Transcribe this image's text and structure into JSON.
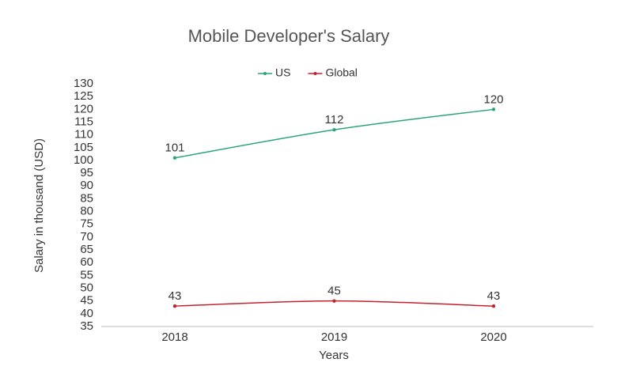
{
  "chart_data": {
    "type": "line",
    "title": "Mobile Developer's Salary",
    "x_label": "Years",
    "y_label": "Salary in thousand (USD)",
    "categories": [
      "2018",
      "2019",
      "2020"
    ],
    "series": [
      {
        "name": "US",
        "color": "#2ca47c",
        "values": [
          101,
          112,
          120
        ]
      },
      {
        "name": "Global",
        "color": "#c3212e",
        "values": [
          43,
          45,
          43
        ]
      }
    ],
    "ylim": [
      35,
      130
    ],
    "yticks": [
      35,
      40,
      45,
      50,
      55,
      60,
      65,
      70,
      75,
      80,
      85,
      90,
      95,
      100,
      105,
      110,
      115,
      120,
      125,
      130
    ],
    "legend": "top",
    "data_labels": true
  }
}
